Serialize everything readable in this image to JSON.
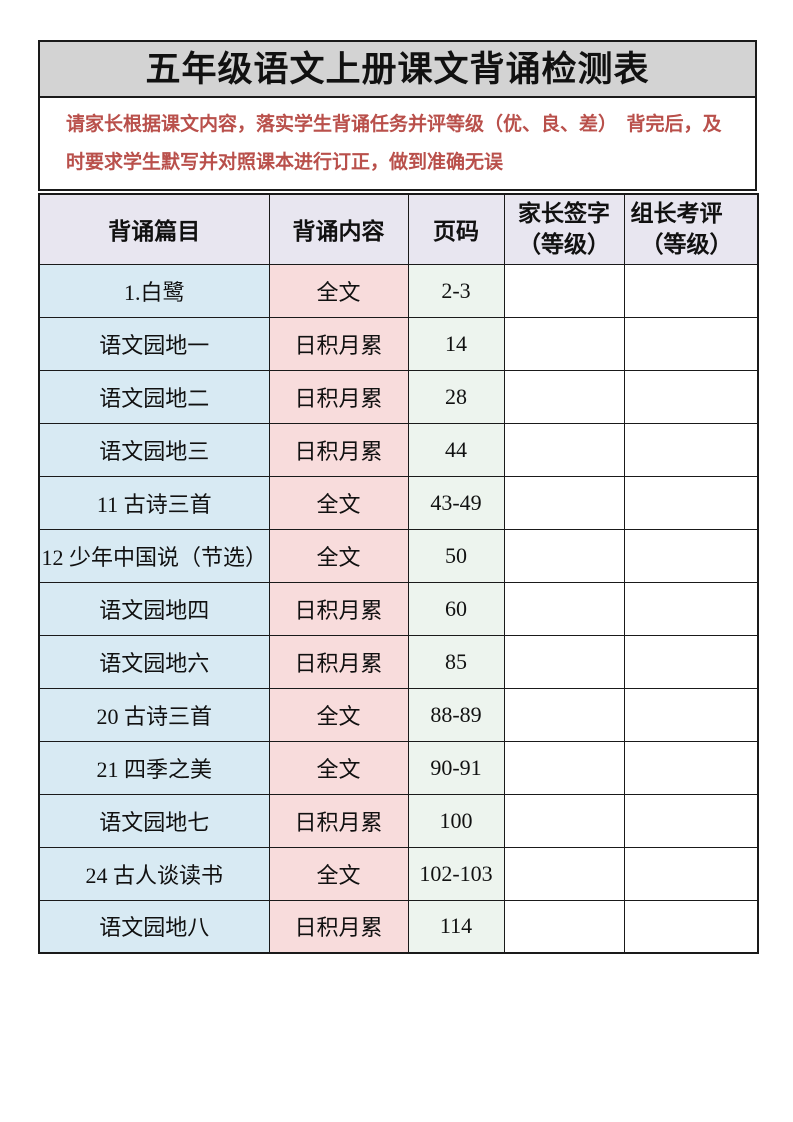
{
  "page": {
    "title": "五年级语文上册课文背诵检测表"
  },
  "notice": {
    "text": "请家长根据课文内容，落实学生背诵任务并评等级（优、良、差）　背完后，及时要求学生默写并对照课本进行订正，做到准确无误"
  },
  "table": {
    "headers": {
      "col1": "背诵篇目",
      "col2": "背诵内容",
      "col3": "页码",
      "col4_line1": "家长签字",
      "col4_line2": "（等级）",
      "col5_line1": "组长考评",
      "col5_line2": "（等级）"
    },
    "rows": [
      {
        "title": "1.白鹭",
        "content": "全文",
        "page": "2-3",
        "parent_sign": "",
        "leader_eval": ""
      },
      {
        "title": "语文园地一",
        "content": "日积月累",
        "page": "14",
        "parent_sign": "",
        "leader_eval": ""
      },
      {
        "title": "语文园地二",
        "content": "日积月累",
        "page": "28",
        "parent_sign": "",
        "leader_eval": ""
      },
      {
        "title": "语文园地三",
        "content": "日积月累",
        "page": "44",
        "parent_sign": "",
        "leader_eval": ""
      },
      {
        "title": "11 古诗三首",
        "content": "全文",
        "page": "43-49",
        "parent_sign": "",
        "leader_eval": ""
      },
      {
        "title": "12 少年中国说（节选）",
        "content": "全文",
        "page": "50",
        "parent_sign": "",
        "leader_eval": ""
      },
      {
        "title": "语文园地四",
        "content": "日积月累",
        "page": "60",
        "parent_sign": "",
        "leader_eval": ""
      },
      {
        "title": "语文园地六",
        "content": "日积月累",
        "page": "85",
        "parent_sign": "",
        "leader_eval": ""
      },
      {
        "title": "20 古诗三首",
        "content": "全文",
        "page": "88-89",
        "parent_sign": "",
        "leader_eval": ""
      },
      {
        "title": "21 四季之美",
        "content": "全文",
        "page": "90-91",
        "parent_sign": "",
        "leader_eval": ""
      },
      {
        "title": "语文园地七",
        "content": "日积月累",
        "page": "100",
        "parent_sign": "",
        "leader_eval": ""
      },
      {
        "title": "24 古人谈读书",
        "content": "全文",
        "page": "102-103",
        "parent_sign": "",
        "leader_eval": ""
      },
      {
        "title": "语文园地八",
        "content": "日积月累",
        "page": "114",
        "parent_sign": "",
        "leader_eval": ""
      }
    ]
  },
  "colors": {
    "title_bg": "#d3d3d3",
    "header_bg": "#e8e6f0",
    "title_col_bg": "#d8eaf3",
    "content_col_bg": "#f8dcdc",
    "page_col_bg": "#edf4ee",
    "notice_text": "#b9504b",
    "border": "#1a1a1a"
  }
}
